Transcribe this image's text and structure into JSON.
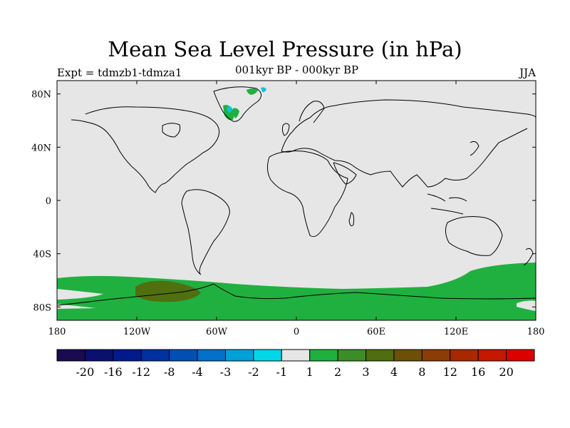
{
  "map": {
    "title": "Mean Sea Level Pressure (in hPa)",
    "left_label": "Expt = tdmzb1-tdmza1",
    "center_label": "001kyr BP - 000kyr BP",
    "right_label": "JJA",
    "projection": "cylindrical-equidistant",
    "lon_range": [
      -180,
      180
    ],
    "lat_range": [
      -90,
      90
    ],
    "lon_ticks": [
      "180",
      "120W",
      "60W",
      "0",
      "60E",
      "120E",
      "180"
    ],
    "lat_ticks": [
      "80N",
      "40N",
      "0",
      "40S",
      "80S"
    ],
    "background_color": "#e6e6e6",
    "coastline_color": "#000000",
    "regions": [
      {
        "name": "southern-ocean-band",
        "class": "1 to 2",
        "color": "#20b040"
      },
      {
        "name": "pacific-sector-maximum",
        "class": "3 to 4",
        "color": "#507010"
      },
      {
        "name": "greenland-patches",
        "class": "1 to 2",
        "color": "#20b040"
      },
      {
        "name": "greenland-negative-patches",
        "class": "-2 to -1",
        "color": "#00c8e8"
      }
    ]
  },
  "colorbar": {
    "levels": [
      "-20",
      "-16",
      "-12",
      "-8",
      "-4",
      "-3",
      "-2",
      "-1",
      "1",
      "2",
      "3",
      "4",
      "8",
      "12",
      "16",
      "20"
    ],
    "colors": [
      "#1a0a50",
      "#0a106e",
      "#001a8c",
      "#0030a0",
      "#0050b4",
      "#0070c8",
      "#00a0d8",
      "#00d8e8",
      "#e6e6e6",
      "#20b040",
      "#3c8c28",
      "#506c10",
      "#6c5008",
      "#8c3c04",
      "#a82800",
      "#c41800",
      "#dc0000"
    ]
  }
}
